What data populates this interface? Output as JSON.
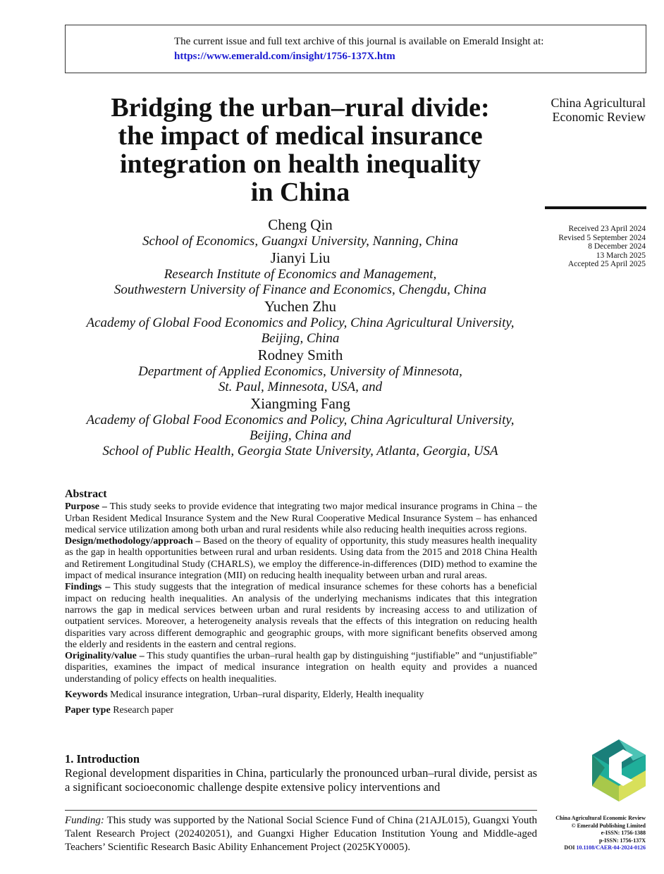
{
  "header": {
    "notice": "The current issue and full text archive of this journal is available on Emerald Insight at:",
    "url": "https://www.emerald.com/insight/1756-137X.htm"
  },
  "title_lines": [
    "Bridging the urban–rural divide:",
    "the impact of medical insurance",
    "integration on health inequality",
    "in China"
  ],
  "journal": [
    "China Agricultural",
    "Economic Review"
  ],
  "dates": [
    "Received 23 April 2024",
    "Revised 5 September 2024",
    "8 December 2024",
    "13 March 2025",
    "Accepted 25 April 2025"
  ],
  "authors": [
    {
      "name": "Cheng Qin",
      "aff": [
        "School of Economics, Guangxi University, Nanning, China"
      ]
    },
    {
      "name": "Jianyi Liu",
      "aff": [
        "Research Institute of Economics and Management,",
        "Southwestern University of Finance and Economics, Chengdu, China"
      ]
    },
    {
      "name": "Yuchen Zhu",
      "aff": [
        "Academy of Global Food Economics and Policy, China Agricultural University,",
        "Beijing, China"
      ]
    },
    {
      "name": "Rodney Smith",
      "aff": [
        "Department of Applied Economics, University of Minnesota,",
        "St. Paul, Minnesota, USA, and"
      ]
    },
    {
      "name": "Xiangming Fang",
      "aff": [
        "Academy of Global Food Economics and Policy, China Agricultural University,",
        "Beijing, China and",
        "School of Public Health, Georgia State University, Atlanta, Georgia, USA"
      ]
    }
  ],
  "abstract": {
    "heading": "Abstract",
    "sections": [
      {
        "label": "Purpose –",
        "text": " This study seeks to provide evidence that integrating two major medical insurance programs in China – the Urban Resident Medical Insurance System and the New Rural Cooperative Medical Insurance System – has enhanced medical service utilization among both urban and rural residents while also reducing health inequities across regions."
      },
      {
        "label": "Design/methodology/approach –",
        "text": " Based on the theory of equality of opportunity, this study measures health inequality as the gap in health opportunities between rural and urban residents. Using data from the 2015 and 2018 China Health and Retirement Longitudinal Study (CHARLS), we employ the difference-in-differences (DID) method to examine the impact of medical insurance integration (MII) on reducing health inequality between urban and rural areas."
      },
      {
        "label": "Findings –",
        "text": " This study suggests that the integration of medical insurance schemes for these cohorts has a beneficial impact on reducing health inequalities. An analysis of the underlying mechanisms indicates that this integration narrows the gap in medical services between urban and rural residents by increasing access to and utilization of outpatient services. Moreover, a heterogeneity analysis reveals that the effects of this integration on reducing health disparities vary across different demographic and geographic groups, with more significant benefits observed among the elderly and residents in the eastern and central regions."
      },
      {
        "label": "Originality/value –",
        "text": " This study quantifies the urban–rural health gap by distinguishing “justifiable” and “unjustifiable” disparities, examines the impact of medical insurance integration on health equity and provides a nuanced understanding of policy effects on health inequalities."
      }
    ],
    "keywords_label": "Keywords",
    "keywords": " Medical insurance integration, Urban–rural disparity, Elderly, Health inequality",
    "paper_type_label": "Paper type",
    "paper_type": " Research paper"
  },
  "intro": {
    "heading": "1. Introduction",
    "text": "Regional development disparities in China, particularly the pronounced urban–rural divide, persist as a significant socioeconomic challenge despite extensive policy interventions and"
  },
  "footnote": {
    "label": "Funding:",
    "text": " This study was supported by the National Social Science Fund of China (21AJL015), Guangxi Youth Talent Research Project (202402051), and Guangxi Higher Education Institution Young and Middle-aged Teachers’ Scientific Research Basic Ability Enhancement Project (2025KY0005)."
  },
  "publisher": {
    "journal": "China Agricultural Economic Review",
    "copyright": "© Emerald Publishing Limited",
    "eissn": "e-ISSN: 1756-1388",
    "pissn": "p-ISSN: 1756-137X",
    "doi_label": "DOI ",
    "doi": "10.1108/CAER-04-2024-0126"
  }
}
